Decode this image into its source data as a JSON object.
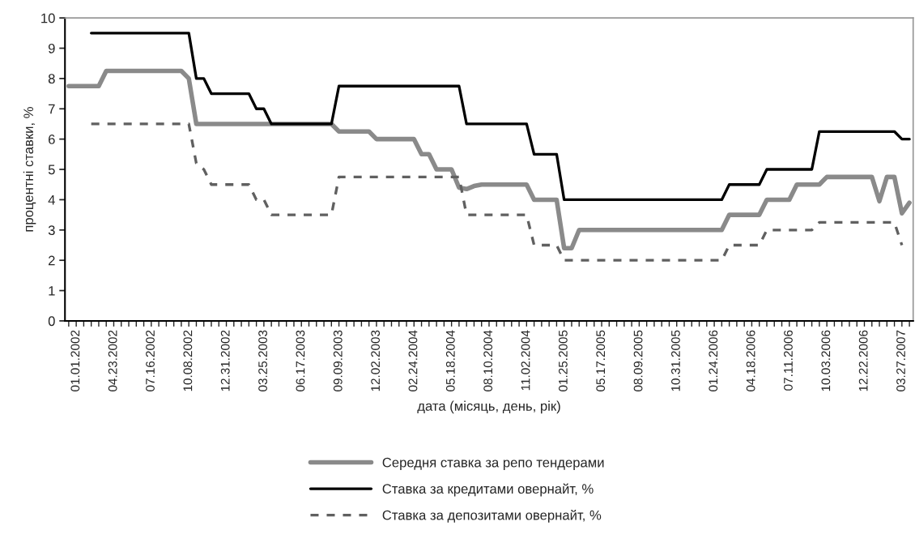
{
  "chart_data": {
    "type": "line",
    "xlabel": "дата (місяць, день, рік)",
    "ylabel": "процентні ставки, %",
    "categories": [
      null,
      "01.01.2002",
      null,
      null,
      null,
      null,
      "04.23.2002",
      null,
      null,
      null,
      null,
      "07.16.2002",
      null,
      null,
      null,
      null,
      "10.08.2002",
      null,
      null,
      null,
      null,
      "12.31.2002",
      null,
      null,
      null,
      null,
      "03.25.2003",
      null,
      null,
      null,
      null,
      "06.17.2003",
      null,
      null,
      null,
      null,
      "09.09.2003",
      null,
      null,
      null,
      null,
      "12.02.2003",
      null,
      null,
      null,
      null,
      "02.24.2004",
      null,
      null,
      null,
      null,
      "05.18.2004",
      null,
      null,
      null,
      null,
      "08.10.2004",
      null,
      null,
      null,
      null,
      "11.02.2004",
      null,
      null,
      null,
      null,
      "01.25.2005",
      null,
      null,
      null,
      null,
      "05.17.2005",
      null,
      null,
      null,
      null,
      "08.09.2005",
      null,
      null,
      null,
      null,
      "10.31.2005",
      null,
      null,
      null,
      null,
      "01.24.2006",
      null,
      null,
      null,
      null,
      "04.18.2006",
      null,
      null,
      null,
      null,
      "07.11.2006",
      null,
      null,
      null,
      null,
      "10.03.2006",
      null,
      null,
      null,
      null,
      "12.22.2006",
      null,
      null,
      null,
      null,
      "03.27.2007",
      null
    ],
    "series": [
      {
        "name": "Середня ставка за репо тендерами",
        "color": "#8a8a8a",
        "line_style": "solid",
        "values": [
          7.75,
          7.75,
          7.75,
          7.75,
          7.75,
          8.25,
          8.25,
          8.25,
          8.25,
          8.25,
          8.25,
          8.25,
          8.25,
          8.25,
          8.25,
          8.25,
          8.0,
          6.5,
          6.5,
          6.5,
          6.5,
          6.5,
          6.5,
          6.5,
          6.5,
          6.5,
          6.5,
          6.5,
          6.5,
          6.5,
          6.5,
          6.5,
          6.5,
          6.5,
          6.5,
          6.5,
          6.25,
          6.25,
          6.25,
          6.25,
          6.25,
          6.0,
          6.0,
          6.0,
          6.0,
          6.0,
          6.0,
          5.5,
          5.5,
          5.0,
          5.0,
          5.0,
          4.4,
          4.35,
          4.45,
          4.5,
          4.5,
          4.5,
          4.5,
          4.5,
          4.5,
          4.5,
          4.0,
          4.0,
          4.0,
          4.0,
          2.4,
          2.4,
          3.0,
          3.0,
          3.0,
          3.0,
          3.0,
          3.0,
          3.0,
          3.0,
          3.0,
          3.0,
          3.0,
          3.0,
          3.0,
          3.0,
          3.0,
          3.0,
          3.0,
          3.0,
          3.0,
          3.0,
          3.5,
          3.5,
          3.5,
          3.5,
          3.5,
          4.0,
          4.0,
          4.0,
          4.0,
          4.5,
          4.5,
          4.5,
          4.5,
          4.75,
          4.75,
          4.75,
          4.75,
          4.75,
          4.75,
          4.75,
          3.95,
          4.75,
          4.75,
          3.55,
          3.9
        ]
      },
      {
        "name": "Ставка за кредитами овернайт, %",
        "color": "#000000",
        "line_style": "solid",
        "values": [
          null,
          null,
          null,
          9.5,
          9.5,
          9.5,
          9.5,
          9.5,
          9.5,
          9.5,
          9.5,
          9.5,
          9.5,
          9.5,
          9.5,
          9.5,
          9.5,
          8.0,
          8.0,
          7.5,
          7.5,
          7.5,
          7.5,
          7.5,
          7.5,
          7.0,
          7.0,
          6.5,
          6.5,
          6.5,
          6.5,
          6.5,
          6.5,
          6.5,
          6.5,
          6.5,
          7.75,
          7.75,
          7.75,
          7.75,
          7.75,
          7.75,
          7.75,
          7.75,
          7.75,
          7.75,
          7.75,
          7.75,
          7.75,
          7.75,
          7.75,
          7.75,
          7.75,
          6.5,
          6.5,
          6.5,
          6.5,
          6.5,
          6.5,
          6.5,
          6.5,
          6.5,
          5.5,
          5.5,
          5.5,
          5.5,
          4.0,
          4.0,
          4.0,
          4.0,
          4.0,
          4.0,
          4.0,
          4.0,
          4.0,
          4.0,
          4.0,
          4.0,
          4.0,
          4.0,
          4.0,
          4.0,
          4.0,
          4.0,
          4.0,
          4.0,
          4.0,
          4.0,
          4.5,
          4.5,
          4.5,
          4.5,
          4.5,
          5.0,
          5.0,
          5.0,
          5.0,
          5.0,
          5.0,
          5.0,
          6.25,
          6.25,
          6.25,
          6.25,
          6.25,
          6.25,
          6.25,
          6.25,
          6.25,
          6.25,
          6.25,
          6.0,
          6.0
        ]
      },
      {
        "name": "Ставка за депозитами овернайт, %",
        "color": "#606060",
        "line_style": "dashed",
        "values": [
          null,
          null,
          null,
          6.5,
          6.5,
          6.5,
          6.5,
          6.5,
          6.5,
          6.5,
          6.5,
          6.5,
          6.5,
          6.5,
          6.5,
          6.5,
          6.5,
          5.2,
          5.0,
          4.5,
          4.5,
          4.5,
          4.5,
          4.5,
          4.5,
          4.0,
          4.0,
          3.5,
          3.5,
          3.5,
          3.5,
          3.5,
          3.5,
          3.5,
          3.5,
          3.5,
          4.75,
          4.75,
          4.75,
          4.75,
          4.75,
          4.75,
          4.75,
          4.75,
          4.75,
          4.75,
          4.75,
          4.75,
          4.75,
          4.75,
          4.75,
          4.75,
          4.75,
          3.5,
          3.5,
          3.5,
          3.5,
          3.5,
          3.5,
          3.5,
          3.5,
          3.5,
          2.5,
          2.5,
          2.5,
          2.5,
          2.0,
          2.0,
          2.0,
          2.0,
          2.0,
          2.0,
          2.0,
          2.0,
          2.0,
          2.0,
          2.0,
          2.0,
          2.0,
          2.0,
          2.0,
          2.0,
          2.0,
          2.0,
          2.0,
          2.0,
          2.0,
          2.0,
          2.5,
          2.5,
          2.5,
          2.5,
          2.5,
          3.0,
          3.0,
          3.0,
          3.0,
          3.0,
          3.0,
          3.0,
          3.25,
          3.25,
          3.25,
          3.25,
          3.25,
          3.25,
          3.25,
          3.25,
          3.25,
          3.25,
          3.25,
          2.5,
          null
        ]
      }
    ],
    "ylim": [
      0,
      10
    ],
    "yticks": [
      0,
      1,
      2,
      3,
      4,
      5,
      6,
      7,
      8,
      9,
      10
    ],
    "grid": false,
    "legend": "bottom",
    "marker": "none"
  }
}
